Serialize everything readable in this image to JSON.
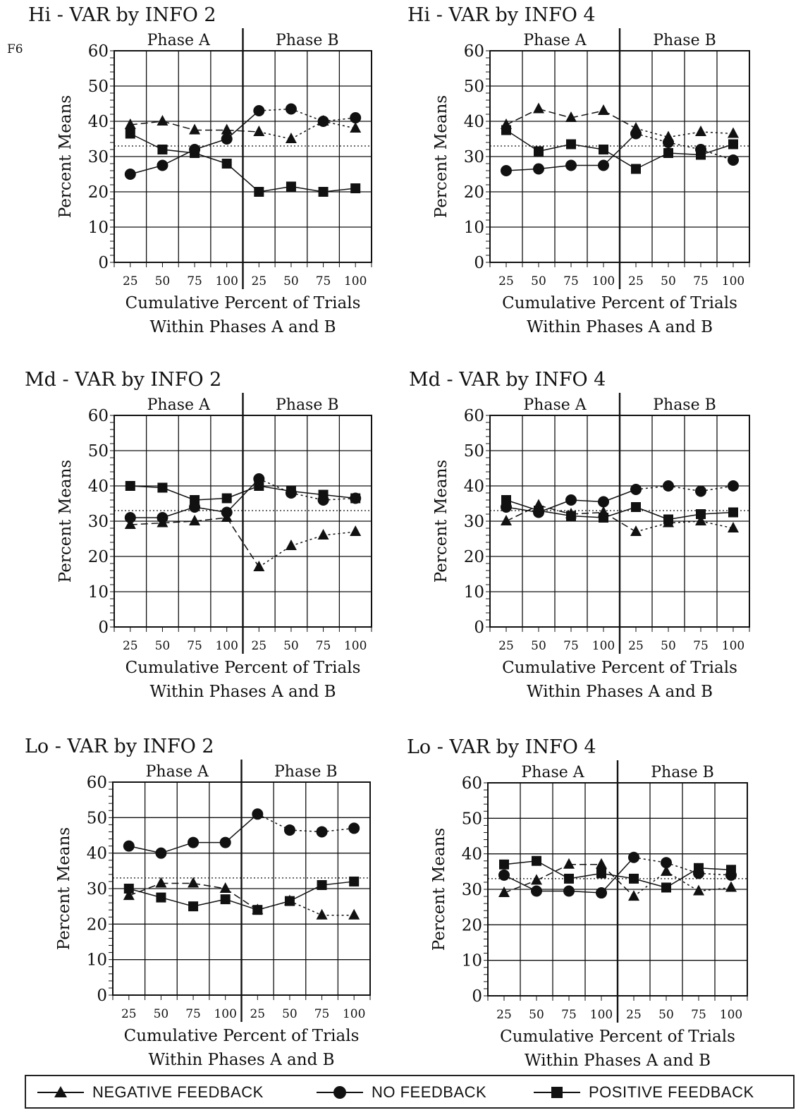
{
  "corner_label": "F6",
  "legend": [
    {
      "key": "neg",
      "label": "NEGATIVE FEEDBACK",
      "marker": "triangle"
    },
    {
      "key": "no",
      "label": "NO FEEDBACK",
      "marker": "circle"
    },
    {
      "key": "pos",
      "label": "POSITIVE FEEDBACK",
      "marker": "square"
    }
  ],
  "chart_data": [
    {
      "type": "line",
      "title": "Hi - VAR by INFO 2",
      "phases": [
        "Phase A",
        "Phase B"
      ],
      "x": [
        "25",
        "50",
        "75",
        "100",
        "25",
        "50",
        "75",
        "100"
      ],
      "xlabel": [
        "Cumulative Percent of Trials",
        "Within Phases A and B"
      ],
      "ylabel": "Percent Means",
      "ylim": [
        0,
        60
      ],
      "yticks": [
        "0",
        "10",
        "20",
        "30",
        "40",
        "50",
        "60"
      ],
      "reference_line": 33,
      "series": [
        {
          "name": "NEGATIVE FEEDBACK",
          "values": [
            39,
            40,
            37.5,
            37.5,
            37,
            35,
            40,
            38
          ]
        },
        {
          "name": "NO FEEDBACK",
          "values": [
            25,
            27.5,
            32,
            35,
            43,
            43.5,
            40,
            41
          ]
        },
        {
          "name": "POSITIVE FEEDBACK",
          "values": [
            36.5,
            32,
            31,
            28,
            20,
            21.5,
            20,
            21
          ]
        }
      ]
    },
    {
      "type": "line",
      "title": "Hi - VAR by INFO 4",
      "phases": [
        "Phase A",
        "Phase B"
      ],
      "x": [
        "25",
        "50",
        "75",
        "100",
        "25",
        "50",
        "75",
        "100"
      ],
      "xlabel": [
        "Cumulative Percent of Trials",
        "Within Phases A and B"
      ],
      "ylabel": "Percent Means",
      "ylim": [
        0,
        60
      ],
      "yticks": [
        "0",
        "10",
        "20",
        "30",
        "40",
        "50",
        "60"
      ],
      "reference_line": 33,
      "series": [
        {
          "name": "NEGATIVE FEEDBACK",
          "values": [
            39,
            43.5,
            41,
            43,
            38,
            35.5,
            37,
            36.5
          ]
        },
        {
          "name": "NO FEEDBACK",
          "values": [
            26,
            26.5,
            27.5,
            27.5,
            36.5,
            34,
            32,
            29
          ]
        },
        {
          "name": "POSITIVE FEEDBACK",
          "values": [
            37.5,
            31.5,
            33.5,
            32,
            26.5,
            31,
            30.5,
            33.5
          ]
        }
      ]
    },
    {
      "type": "line",
      "title": "Md - VAR by INFO 2",
      "phases": [
        "Phase A",
        "Phase B"
      ],
      "x": [
        "25",
        "50",
        "75",
        "100",
        "25",
        "50",
        "75",
        "100"
      ],
      "xlabel": [
        "Cumulative Percent of Trials",
        "Within Phases A and B"
      ],
      "ylabel": "Percent Means",
      "ylim": [
        0,
        60
      ],
      "yticks": [
        "0",
        "10",
        "20",
        "30",
        "40",
        "50",
        "60"
      ],
      "reference_line": 33,
      "series": [
        {
          "name": "NEGATIVE FEEDBACK",
          "values": [
            29,
            29.5,
            30,
            31,
            17,
            23,
            26,
            27
          ]
        },
        {
          "name": "NO FEEDBACK",
          "values": [
            31,
            31,
            34,
            32.5,
            42,
            38,
            36,
            36.5
          ]
        },
        {
          "name": "POSITIVE FEEDBACK",
          "values": [
            40,
            39.5,
            36,
            36.5,
            40,
            38.5,
            37.5,
            36.5
          ]
        }
      ]
    },
    {
      "type": "line",
      "title": "Md - VAR by INFO 4",
      "phases": [
        "Phase A",
        "Phase B"
      ],
      "x": [
        "25",
        "50",
        "75",
        "100",
        "25",
        "50",
        "75",
        "100"
      ],
      "xlabel": [
        "Cumulative Percent of Trials",
        "Within Phases A and B"
      ],
      "ylabel": "Percent Means",
      "ylim": [
        0,
        60
      ],
      "yticks": [
        "0",
        "10",
        "20",
        "30",
        "40",
        "50",
        "60"
      ],
      "reference_line": 33,
      "series": [
        {
          "name": "NEGATIVE FEEDBACK",
          "values": [
            30,
            34.5,
            32,
            32.5,
            27,
            29.5,
            30,
            28
          ]
        },
        {
          "name": "NO FEEDBACK",
          "values": [
            34,
            32.5,
            36,
            35.5,
            39,
            40,
            38.5,
            40
          ]
        },
        {
          "name": "POSITIVE FEEDBACK",
          "values": [
            36,
            33,
            31.5,
            31,
            34,
            30.5,
            32,
            32.5
          ]
        }
      ]
    },
    {
      "type": "line",
      "title": "Lo - VAR by INFO 2",
      "phases": [
        "Phase A",
        "Phase B"
      ],
      "x": [
        "25",
        "50",
        "75",
        "100",
        "25",
        "50",
        "75",
        "100"
      ],
      "xlabel": [
        "Cumulative Percent of Trials",
        "Within Phases A and B"
      ],
      "ylabel": "Percent Means",
      "ylim": [
        0,
        60
      ],
      "yticks": [
        "0",
        "10",
        "20",
        "30",
        "40",
        "50",
        "60"
      ],
      "reference_line": 33,
      "series": [
        {
          "name": "NEGATIVE FEEDBACK",
          "values": [
            28,
            31.5,
            31.5,
            30,
            24,
            26.5,
            22.5,
            22.5
          ]
        },
        {
          "name": "NO FEEDBACK",
          "values": [
            42,
            40,
            43,
            43,
            51,
            46.5,
            46,
            47
          ]
        },
        {
          "name": "POSITIVE FEEDBACK",
          "values": [
            30,
            27.5,
            25,
            27,
            24,
            26.5,
            31,
            32
          ]
        }
      ]
    },
    {
      "type": "line",
      "title": "Lo - VAR by INFO 4",
      "phases": [
        "Phase A",
        "Phase B"
      ],
      "x": [
        "25",
        "50",
        "75",
        "100",
        "25",
        "50",
        "75",
        "100"
      ],
      "xlabel": [
        "Cumulative Percent of Trials",
        "Within Phases A and B"
      ],
      "ylabel": "Percent Means",
      "ylim": [
        0,
        60
      ],
      "yticks": [
        "0",
        "10",
        "20",
        "30",
        "40",
        "50",
        "60"
      ],
      "reference_line": 33,
      "series": [
        {
          "name": "NEGATIVE FEEDBACK",
          "values": [
            29,
            32.5,
            37,
            37,
            28,
            35,
            29.5,
            30.5
          ]
        },
        {
          "name": "NO FEEDBACK",
          "values": [
            34,
            29.5,
            29.5,
            29,
            39,
            37.5,
            34.5,
            34
          ]
        },
        {
          "name": "POSITIVE FEEDBACK",
          "values": [
            37,
            38,
            33,
            34.5,
            33,
            30.5,
            36,
            35.5
          ]
        }
      ]
    }
  ]
}
